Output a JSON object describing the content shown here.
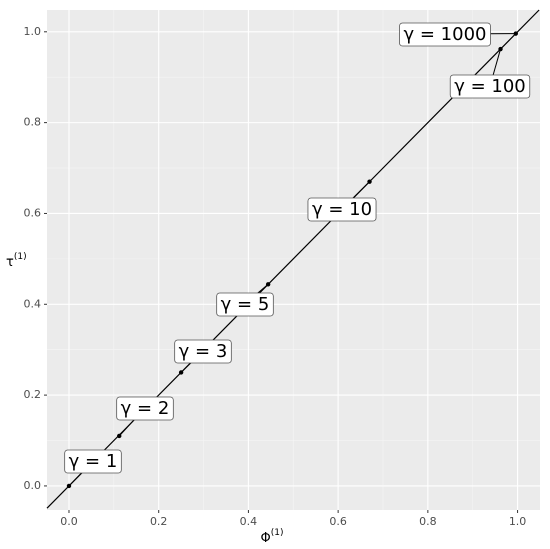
{
  "chart_data": {
    "type": "scatter",
    "xlabel": "Φ",
    "xlabel_superscript": "(1)",
    "ylabel": "τ",
    "ylabel_superscript": "(1)",
    "x": [
      0,
      0.112,
      0.25,
      0.444,
      0.67,
      0.962,
      0.996
    ],
    "values": [
      0,
      0.11,
      0.25,
      0.444,
      0.67,
      0.962,
      0.996
    ],
    "point_labels": [
      "γ = 1",
      "γ = 2",
      "γ = 3",
      "γ = 5",
      "γ = 10",
      "γ = 100",
      "γ = 1000"
    ],
    "color": "#000000",
    "reference_line": {
      "slope": 1,
      "intercept": 0
    },
    "xlim": [
      -0.049,
      1.05
    ],
    "ylim": [
      -0.053,
      1.048
    ],
    "xticks": [
      {
        "value": 0,
        "label": "0.0"
      },
      {
        "value": 0.2,
        "label": "0.2"
      },
      {
        "value": 0.4,
        "label": "0.4"
      },
      {
        "value": 0.6,
        "label": "0.6"
      },
      {
        "value": 0.8,
        "label": "0.8"
      },
      {
        "value": 1,
        "label": "1.0"
      }
    ],
    "yticks": [
      {
        "value": 0,
        "label": "0.0"
      },
      {
        "value": 0.2,
        "label": "0.2"
      },
      {
        "value": 0.4,
        "label": "0.4"
      },
      {
        "value": 0.6,
        "label": "0.6"
      },
      {
        "value": 0.8,
        "label": "0.8"
      },
      {
        "value": 1,
        "label": "1.0"
      }
    ],
    "grid": true
  }
}
